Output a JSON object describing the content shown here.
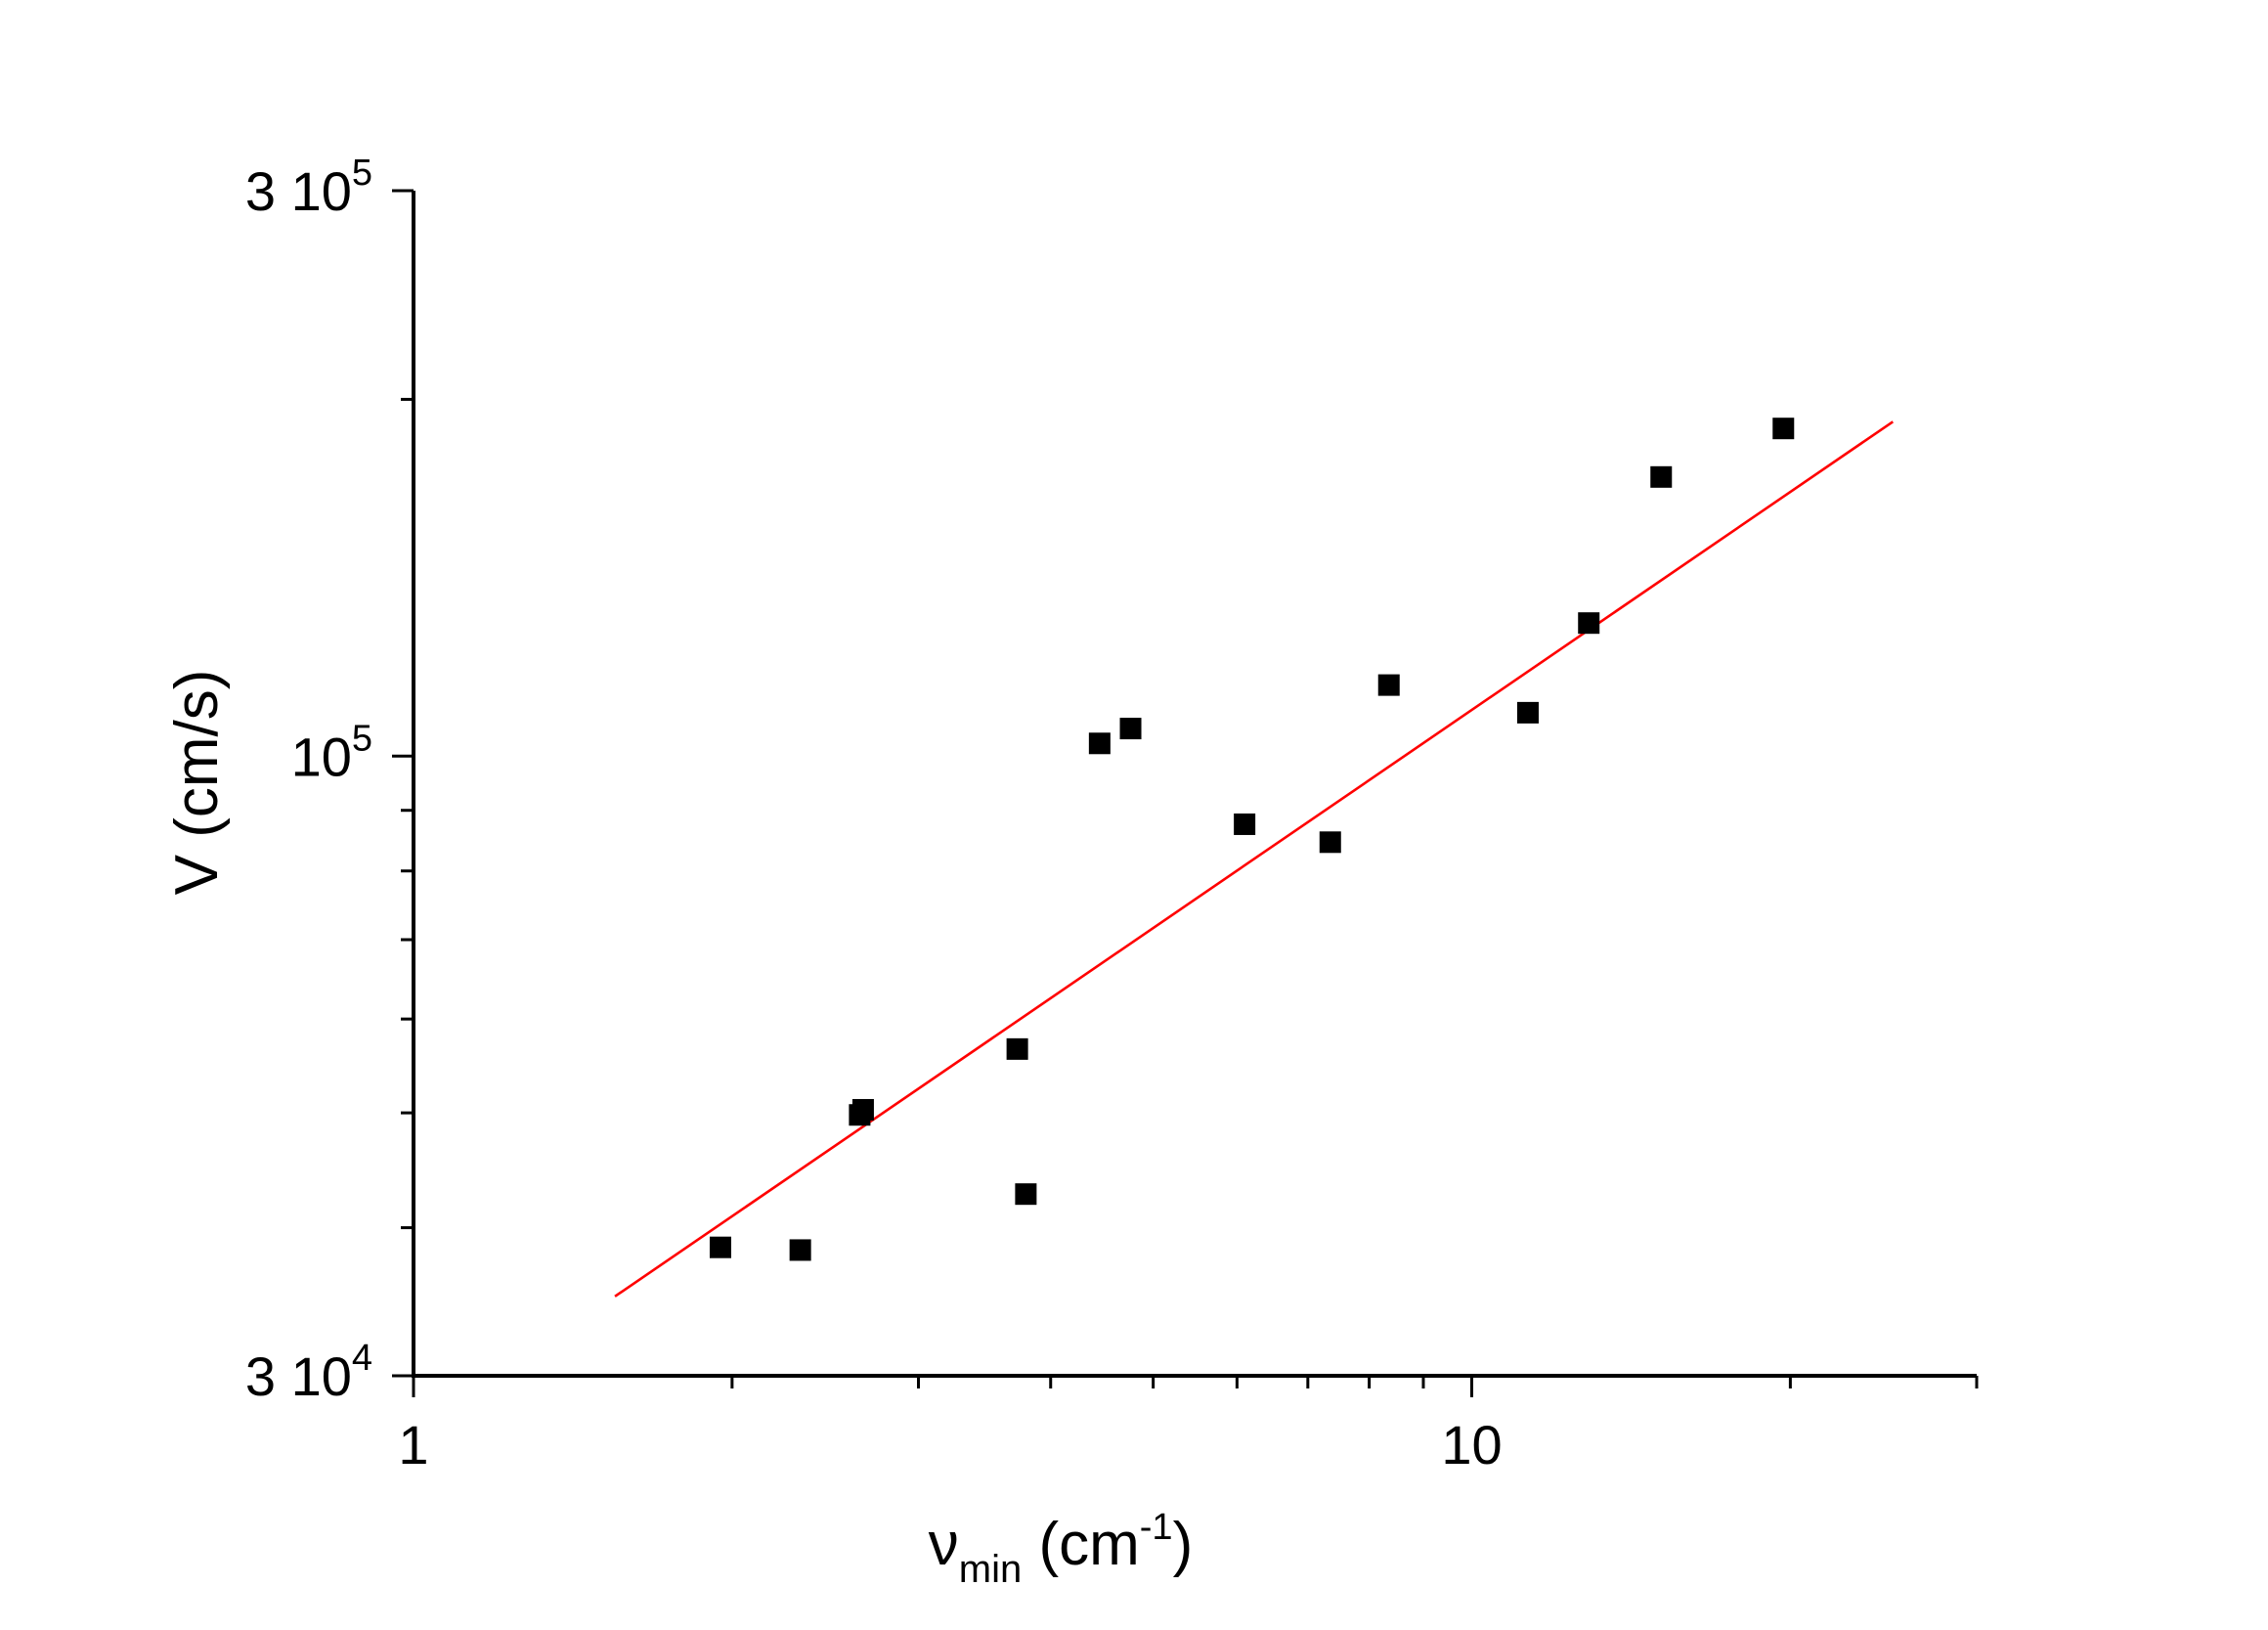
{
  "chart_data": {
    "type": "scatter",
    "x_scale": "log",
    "y_scale": "log",
    "xlim": [
      1,
      30
    ],
    "ylim": [
      30000,
      300000
    ],
    "x_ticks": [
      {
        "value": 1,
        "label": "1"
      },
      {
        "value": 10,
        "label": "10"
      }
    ],
    "y_ticks": [
      {
        "value": 30000,
        "mantissa": "3 10",
        "exp": "4"
      },
      {
        "value": 100000,
        "mantissa": "10",
        "exp": "5"
      },
      {
        "value": 300000,
        "mantissa": "3 10",
        "exp": "5"
      }
    ],
    "xlabel": {
      "main": "ν",
      "sub": "min",
      "unit_open": " (cm",
      "unit_exp": "-1",
      "unit_close": ")"
    },
    "ylabel": "V (cm/s)",
    "grid": false,
    "marker_color": "#000000",
    "fit_color": "#ff0000",
    "points": [
      {
        "x": 1.95,
        "y": 38500
      },
      {
        "x": 2.32,
        "y": 38300
      },
      {
        "x": 2.64,
        "y": 49800
      },
      {
        "x": 2.66,
        "y": 50300
      },
      {
        "x": 3.72,
        "y": 56600
      },
      {
        "x": 3.79,
        "y": 42700
      },
      {
        "x": 4.45,
        "y": 102500
      },
      {
        "x": 4.76,
        "y": 105500
      },
      {
        "x": 6.1,
        "y": 87600
      },
      {
        "x": 7.35,
        "y": 84600
      },
      {
        "x": 8.35,
        "y": 114800
      },
      {
        "x": 11.3,
        "y": 108800
      },
      {
        "x": 12.9,
        "y": 129500
      },
      {
        "x": 15.1,
        "y": 172000
      },
      {
        "x": 19.7,
        "y": 189000
      }
    ],
    "fit_line": [
      {
        "x": 1.55,
        "y": 35000
      },
      {
        "x": 25.0,
        "y": 191500
      }
    ]
  }
}
